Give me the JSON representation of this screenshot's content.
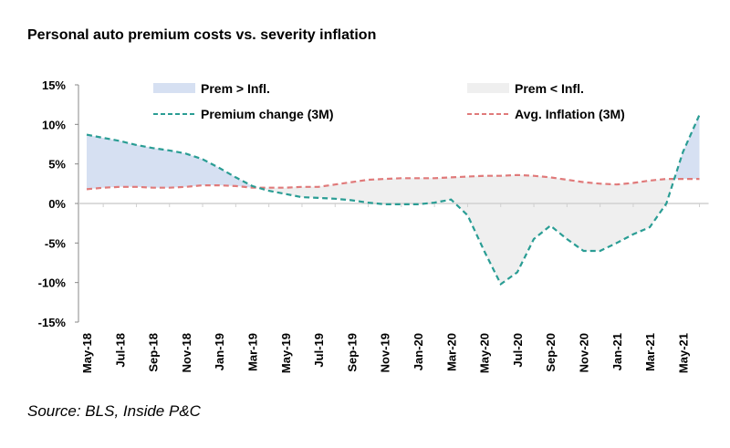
{
  "chart_data": {
    "type": "line",
    "title": "Personal auto premium costs vs. severity inflation",
    "source": "Source: BLS, Inside P&C",
    "ylim": [
      -15,
      15
    ],
    "yticks": [
      15,
      10,
      5,
      0,
      -5,
      -10,
      -15
    ],
    "ytick_labels": [
      "15%",
      "10%",
      "5%",
      "0%",
      "-5%",
      "-10%",
      "-15%"
    ],
    "x": [
      "May-18",
      "Jun-18",
      "Jul-18",
      "Aug-18",
      "Sep-18",
      "Oct-18",
      "Nov-18",
      "Dec-18",
      "Jan-19",
      "Feb-19",
      "Mar-19",
      "Apr-19",
      "May-19",
      "Jun-19",
      "Jul-19",
      "Aug-19",
      "Sep-19",
      "Oct-19",
      "Nov-19",
      "Dec-19",
      "Jan-20",
      "Feb-20",
      "Mar-20",
      "Apr-20",
      "May-20",
      "Jun-20",
      "Jul-20",
      "Aug-20",
      "Sep-20",
      "Oct-20",
      "Nov-20",
      "Dec-20",
      "Jan-21",
      "Feb-21",
      "Mar-21",
      "Apr-21",
      "May-21",
      "Jun-21"
    ],
    "xtick_labels": [
      "May-18",
      "Jul-18",
      "Sep-18",
      "Nov-18",
      "Jan-19",
      "Mar-19",
      "May-19",
      "Jul-19",
      "Sep-19",
      "Nov-19",
      "Jan-20",
      "Mar-20",
      "May-20",
      "Jul-20",
      "Sep-20",
      "Nov-20",
      "Jan-21",
      "Mar-21",
      "May-21"
    ],
    "series": [
      {
        "name": "Premium change (3M)",
        "color": "#2a9d94",
        "style": "dashed",
        "values": [
          8.7,
          8.3,
          7.9,
          7.4,
          7.0,
          6.7,
          6.3,
          5.6,
          4.5,
          3.3,
          2.2,
          1.6,
          1.2,
          0.8,
          0.7,
          0.6,
          0.4,
          0.1,
          -0.1,
          -0.1,
          -0.1,
          0.1,
          0.5,
          -1.5,
          -6.0,
          -10.2,
          -8.7,
          -4.5,
          -2.8,
          -4.5,
          -6.0,
          -6.0,
          -5.0,
          -3.9,
          -3.0,
          0.0,
          6.5,
          11.2
        ]
      },
      {
        "name": "Avg. Inflation (3M)",
        "color": "#e07a7a",
        "style": "dashed",
        "values": [
          1.8,
          2.0,
          2.1,
          2.1,
          2.0,
          2.0,
          2.1,
          2.3,
          2.3,
          2.2,
          2.0,
          2.0,
          2.0,
          2.1,
          2.1,
          2.4,
          2.7,
          3.0,
          3.1,
          3.2,
          3.2,
          3.2,
          3.3,
          3.4,
          3.5,
          3.5,
          3.6,
          3.5,
          3.3,
          3.0,
          2.7,
          2.5,
          2.4,
          2.6,
          2.9,
          3.1,
          3.1,
          3.1
        ]
      }
    ],
    "areas": [
      {
        "name": "Prem > Infl.",
        "color": "#d6e0f2"
      },
      {
        "name": "Prem < Infl.",
        "color": "#efefef"
      }
    ],
    "legend": "top",
    "grid": false
  }
}
